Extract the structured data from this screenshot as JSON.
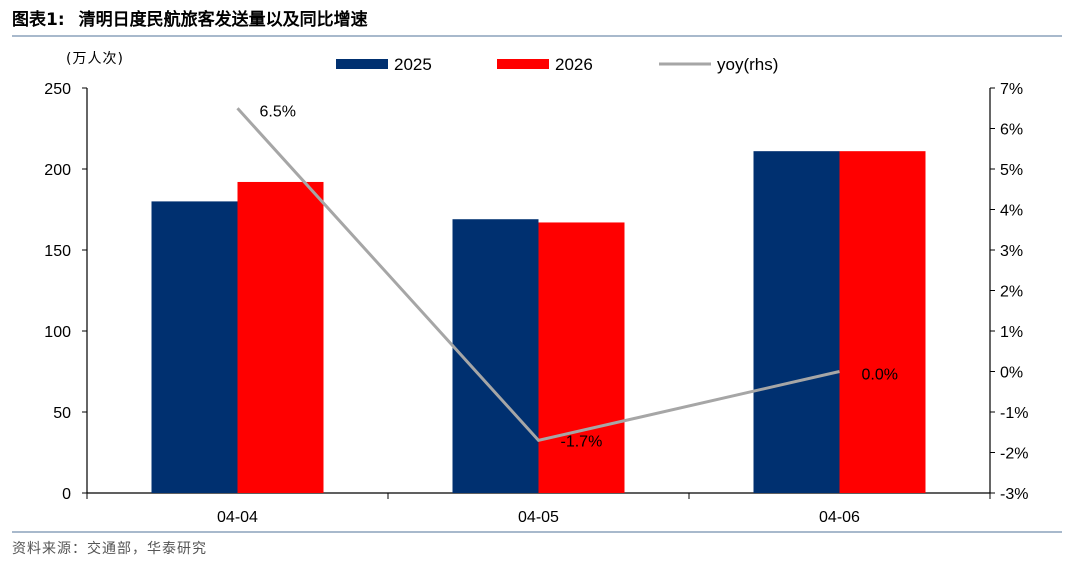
{
  "header": {
    "figure_label": "图表1:",
    "figure_title": "清明日度民航旅客发送量以及同比增速"
  },
  "footer": {
    "source": "资料来源：交通部，华泰研究"
  },
  "chart_data": {
    "type": "bar",
    "title": "清明日度民航旅客发送量以及同比增速",
    "ylabel": "(万人次)",
    "categories": [
      "04-04",
      "04-05",
      "04-06"
    ],
    "series": [
      {
        "name": "2025",
        "type": "bar",
        "axis": "left",
        "color": "#003070",
        "values": [
          180,
          169,
          211
        ]
      },
      {
        "name": "2026",
        "type": "bar",
        "axis": "left",
        "color": "#ff0000",
        "values": [
          192,
          167,
          211
        ]
      },
      {
        "name": "yoy(rhs)",
        "type": "line",
        "axis": "right",
        "color": "#a6a6a6",
        "values": [
          6.5,
          -1.7,
          0.0
        ],
        "labels": [
          "6.5%",
          "-1.7%",
          "0.0%"
        ]
      }
    ],
    "ylim": [
      0,
      250
    ],
    "yticks": [
      "0",
      "50",
      "100",
      "150",
      "200",
      "250"
    ],
    "y2lim": [
      -3,
      7
    ],
    "y2ticks": [
      "-3%",
      "-2%",
      "-1%",
      "0%",
      "1%",
      "2%",
      "3%",
      "4%",
      "5%",
      "6%",
      "7%"
    ],
    "legend_position": "top",
    "grid": false
  }
}
